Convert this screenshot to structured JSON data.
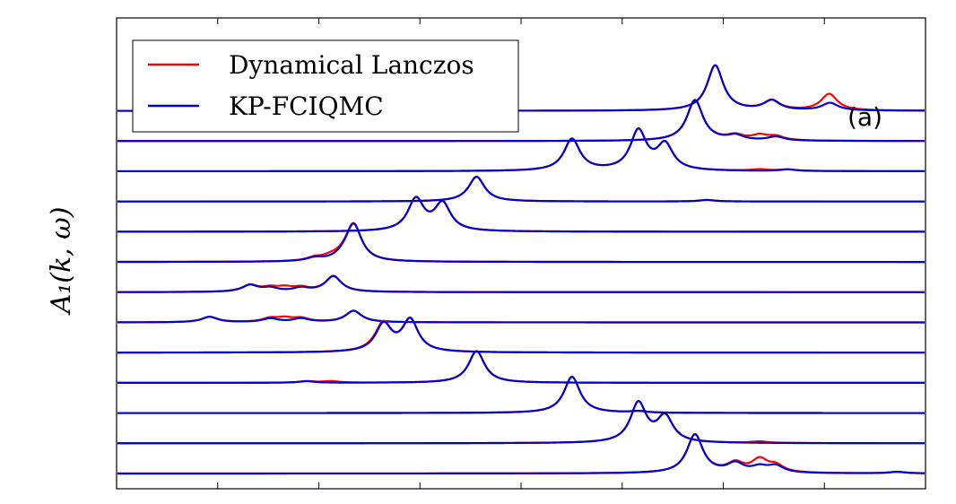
{
  "chart_data": {
    "type": "line",
    "panel_label": "(a)",
    "ylabel": "A₁(k, ω)",
    "xlabel": "",
    "grid": false,
    "legend_placement": "top-left",
    "xlim": [
      0,
      100
    ],
    "offset_step": 1,
    "peak_width": 1.2,
    "series": [
      {
        "name": "Dynamical Lanczos",
        "color": "#ff0000"
      },
      {
        "name": "KP-FCIQMC",
        "color": "#0000cc"
      }
    ],
    "traces": [
      {
        "offset": 13,
        "peaks": [
          [
            74.0,
            1.5
          ],
          [
            81.0,
            0.32
          ],
          [
            88.2,
            0.25
          ]
        ],
        "lanczos_extra": [
          [
            88.0,
            0.3
          ]
        ]
      },
      {
        "offset": 12,
        "peaks": [
          [
            71.5,
            1.35
          ],
          [
            76.5,
            0.16
          ],
          [
            81.5,
            0.13
          ]
        ],
        "lanczos_extra": [
          [
            79.5,
            0.16
          ]
        ]
      },
      {
        "offset": 11,
        "peaks": [
          [
            56.3,
            1.05
          ],
          [
            64.5,
            1.3
          ],
          [
            67.8,
            0.84
          ],
          [
            83.0,
            0.05
          ]
        ],
        "lanczos_extra": [
          [
            79.5,
            0.05
          ]
        ]
      },
      {
        "offset": 10,
        "peaks": [
          [
            44.5,
            0.82
          ],
          [
            73.0,
            0.05
          ]
        ],
        "lanczos_extra": []
      },
      {
        "offset": 9,
        "peaks": [
          [
            37.0,
            1.05
          ],
          [
            40.3,
            0.9
          ]
        ],
        "lanczos_extra": []
      },
      {
        "offset": 8,
        "peaks": [
          [
            29.3,
            1.23
          ],
          [
            24.5,
            0.1
          ],
          [
            28.0,
            0.08
          ]
        ],
        "lanczos_extra": [
          [
            26.5,
            0.1
          ]
        ]
      },
      {
        "offset": 7,
        "peaks": [
          [
            26.8,
            0.52
          ],
          [
            19.0,
            0.12
          ],
          [
            22.8,
            0.12
          ],
          [
            16.5,
            0.22
          ]
        ],
        "lanczos_extra": [
          [
            20.8,
            0.12
          ]
        ]
      },
      {
        "offset": 6,
        "peaks": [
          [
            29.3,
            0.38
          ],
          [
            19.0,
            0.12
          ],
          [
            22.8,
            0.12
          ],
          [
            11.5,
            0.18
          ]
        ],
        "lanczos_extra": [
          [
            20.8,
            0.12
          ]
        ]
      },
      {
        "offset": 5,
        "peaks": [
          [
            33.0,
            0.9
          ],
          [
            36.3,
            1.05
          ]
        ],
        "lanczos_extra": [
          [
            32.0,
            0.05
          ]
        ]
      },
      {
        "offset": 4,
        "peaks": [
          [
            44.5,
            1.05
          ],
          [
            23.5,
            0.05
          ]
        ],
        "lanczos_extra": [
          [
            26.5,
            0.05
          ]
        ]
      },
      {
        "offset": 3,
        "peaks": [
          [
            56.3,
            1.2
          ],
          [
            64.5,
            0.05
          ]
        ],
        "lanczos_extra": []
      },
      {
        "offset": 2,
        "peaks": [
          [
            64.5,
            1.3
          ],
          [
            67.8,
            0.84
          ]
        ],
        "lanczos_extra": [
          [
            79.5,
            0.05
          ]
        ]
      },
      {
        "offset": 1,
        "peaks": [
          [
            71.5,
            1.28
          ],
          [
            76.5,
            0.3
          ],
          [
            79.5,
            0.18
          ],
          [
            81.5,
            0.22
          ],
          [
            96.5,
            0.05
          ]
        ],
        "lanczos_extra": [
          [
            79.5,
            0.24
          ]
        ]
      }
    ]
  }
}
